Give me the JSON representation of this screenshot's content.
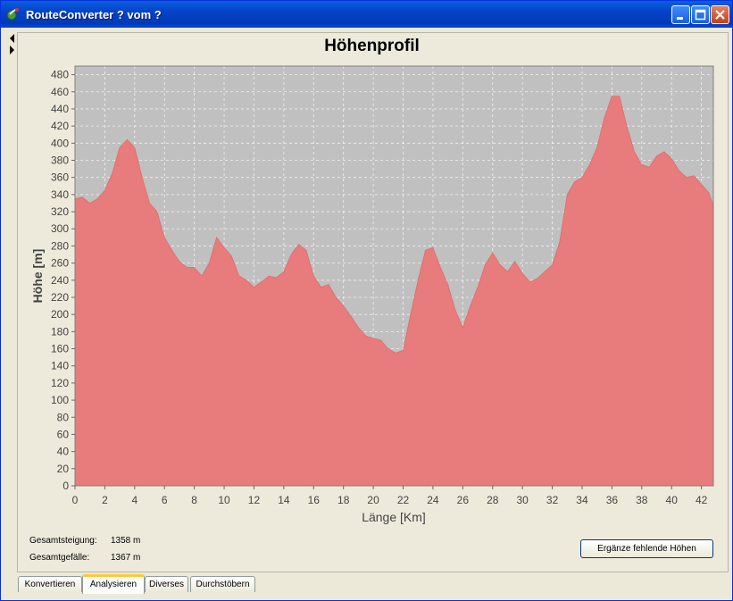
{
  "window": {
    "title": "RouteConverter ? vom ?"
  },
  "icons": [
    "app-icon",
    "minimize-icon",
    "maximize-icon",
    "close-icon",
    "arrow-left-icon",
    "arrow-right-icon"
  ],
  "colors": {
    "area_fill": "#e87b7b",
    "plot_background": "#c0c0c0",
    "titlebar": "#0443c8"
  },
  "chart_data": {
    "type": "area",
    "title": "Höhenprofil",
    "xlabel": "Länge [Km]",
    "ylabel": "Höhe [m]",
    "xlim": [
      0,
      42.8
    ],
    "ylim": [
      0,
      490
    ],
    "x_ticks": [
      "0",
      "2",
      "4",
      "6",
      "8",
      "10",
      "12",
      "14",
      "16",
      "18",
      "20",
      "22",
      "24",
      "26",
      "28",
      "30",
      "32",
      "34",
      "36",
      "38",
      "40",
      "42"
    ],
    "y_ticks": [
      "0",
      "20",
      "40",
      "60",
      "80",
      "100",
      "120",
      "140",
      "160",
      "180",
      "200",
      "220",
      "240",
      "260",
      "280",
      "300",
      "320",
      "340",
      "360",
      "380",
      "400",
      "420",
      "440",
      "460",
      "480"
    ],
    "grid": true,
    "series": [
      {
        "x": [
          0,
          0.5,
          1,
          1.5,
          2,
          2.5,
          3,
          3.5,
          4,
          4.5,
          5,
          5.5,
          6,
          6.5,
          7,
          7.5,
          8,
          8.5,
          9,
          9.5,
          10,
          10.5,
          11,
          11.5,
          12,
          12.5,
          13,
          13.5,
          14,
          14.5,
          15,
          15.5,
          16,
          16.5,
          17,
          17.5,
          18,
          18.5,
          19,
          19.5,
          20,
          20.5,
          21,
          21.5,
          22,
          22.5,
          23,
          23.5,
          24,
          24.5,
          25,
          25.5,
          26,
          26.5,
          27,
          27.5,
          28,
          28.5,
          29,
          29.5,
          30,
          30.5,
          31,
          31.5,
          32,
          32.5,
          33,
          33.5,
          34,
          34.5,
          35,
          35.5,
          36,
          36.5,
          37,
          37.5,
          38,
          38.5,
          39,
          39.5,
          40,
          40.5,
          41,
          41.5,
          42,
          42.5,
          42.8
        ],
        "values": [
          335,
          337,
          330,
          335,
          345,
          365,
          395,
          404,
          395,
          360,
          330,
          320,
          290,
          275,
          262,
          255,
          255,
          245,
          260,
          290,
          278,
          268,
          245,
          240,
          232,
          238,
          245,
          243,
          250,
          270,
          282,
          275,
          245,
          232,
          235,
          220,
          210,
          198,
          185,
          175,
          172,
          170,
          160,
          155,
          158,
          200,
          240,
          275,
          278,
          255,
          235,
          205,
          185,
          210,
          232,
          258,
          272,
          258,
          250,
          262,
          248,
          238,
          242,
          250,
          258,
          285,
          340,
          355,
          360,
          375,
          395,
          430,
          455,
          455,
          420,
          390,
          375,
          372,
          385,
          390,
          382,
          368,
          360,
          362,
          352,
          342,
          327
        ]
      }
    ]
  },
  "stats": {
    "ascent_label": "Gesamtsteigung:",
    "ascent_value": "1358 m",
    "descent_label": "Gesamtgefälle:",
    "descent_value": "1367 m"
  },
  "actions": {
    "complete_elevations": "Ergänze fehlende Höhen"
  },
  "tabs": [
    {
      "label": "Konvertieren",
      "active": false
    },
    {
      "label": "Analysieren",
      "active": true
    },
    {
      "label": "Diverses",
      "active": false
    },
    {
      "label": "Durchstöbern",
      "active": false
    }
  ]
}
